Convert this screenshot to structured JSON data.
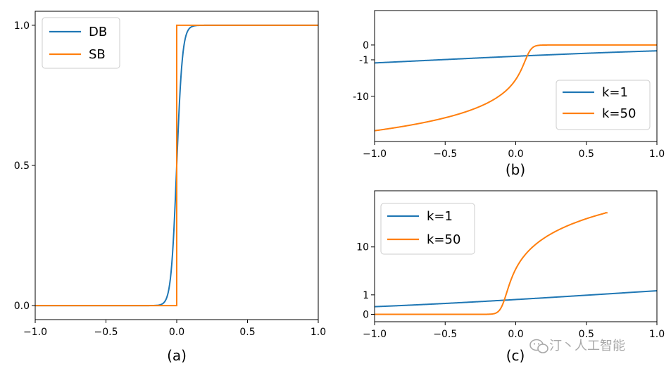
{
  "chart_data": [
    {
      "panel": "a",
      "type": "line",
      "caption": "(a)",
      "xlim": [
        -1.0,
        1.0
      ],
      "ylim": [
        -0.05,
        1.05
      ],
      "x_ticks": [
        "−1.0",
        "−0.5",
        "0.0",
        "0.5",
        "1.0"
      ],
      "x_tick_values": [
        -1.0,
        -0.5,
        0.0,
        0.5,
        1.0
      ],
      "y_ticks": [
        "0.0",
        "0.5",
        "1.0"
      ],
      "y_tick_values": [
        0.0,
        0.5,
        1.0
      ],
      "legend_position": "upper left",
      "series": [
        {
          "name": "DB",
          "color": "#1f77b4",
          "function": "sigmoid",
          "k": 50
        },
        {
          "name": "SB",
          "color": "#ff7f0e",
          "function": "step"
        }
      ]
    },
    {
      "panel": "b",
      "type": "line",
      "caption": "(b)",
      "xlim": [
        -1.0,
        1.0
      ],
      "y_scale": "symlog",
      "x_ticks": [
        "−1.0",
        "−0.5",
        "0.0",
        "0.5",
        "1.0"
      ],
      "x_tick_values": [
        -1.0,
        -0.5,
        0.0,
        0.5,
        1.0
      ],
      "y_ticks": [
        "0",
        "-1",
        "-10"
      ],
      "y_tick_values": [
        0,
        -1,
        -10
      ],
      "legend_position": "lower right",
      "series": [
        {
          "name": "k=1",
          "color": "#1f77b4",
          "y_at_x_min": -0.97,
          "y_at_x_max": -0.3
        },
        {
          "name": "k=50",
          "color": "#ff7f0e",
          "y_at_x_min": -50,
          "y_at_x_max": 0
        }
      ]
    },
    {
      "panel": "c",
      "type": "line",
      "caption": "(c)",
      "xlim": [
        -1.0,
        1.0
      ],
      "y_scale": "symlog",
      "x_ticks": [
        "−1.0",
        "−0.5",
        "0.0",
        "0.5",
        "1.0"
      ],
      "x_tick_values": [
        -1.0,
        -0.5,
        0.0,
        0.5,
        1.0
      ],
      "y_ticks": [
        "0",
        "1",
        "10"
      ],
      "y_tick_values": [
        0,
        1,
        10
      ],
      "legend_position": "upper left",
      "series": [
        {
          "name": "k=1",
          "color": "#1f77b4",
          "y_at_x_min": 0.3,
          "y_at_x_max": 0.97
        },
        {
          "name": "k=50",
          "color": "#ff7f0e",
          "y_at_x_min": 0,
          "y_at_x_max": 50
        }
      ]
    }
  ],
  "watermark": {
    "text": "汀丶人工智能",
    "icon": "wechat-icon"
  }
}
